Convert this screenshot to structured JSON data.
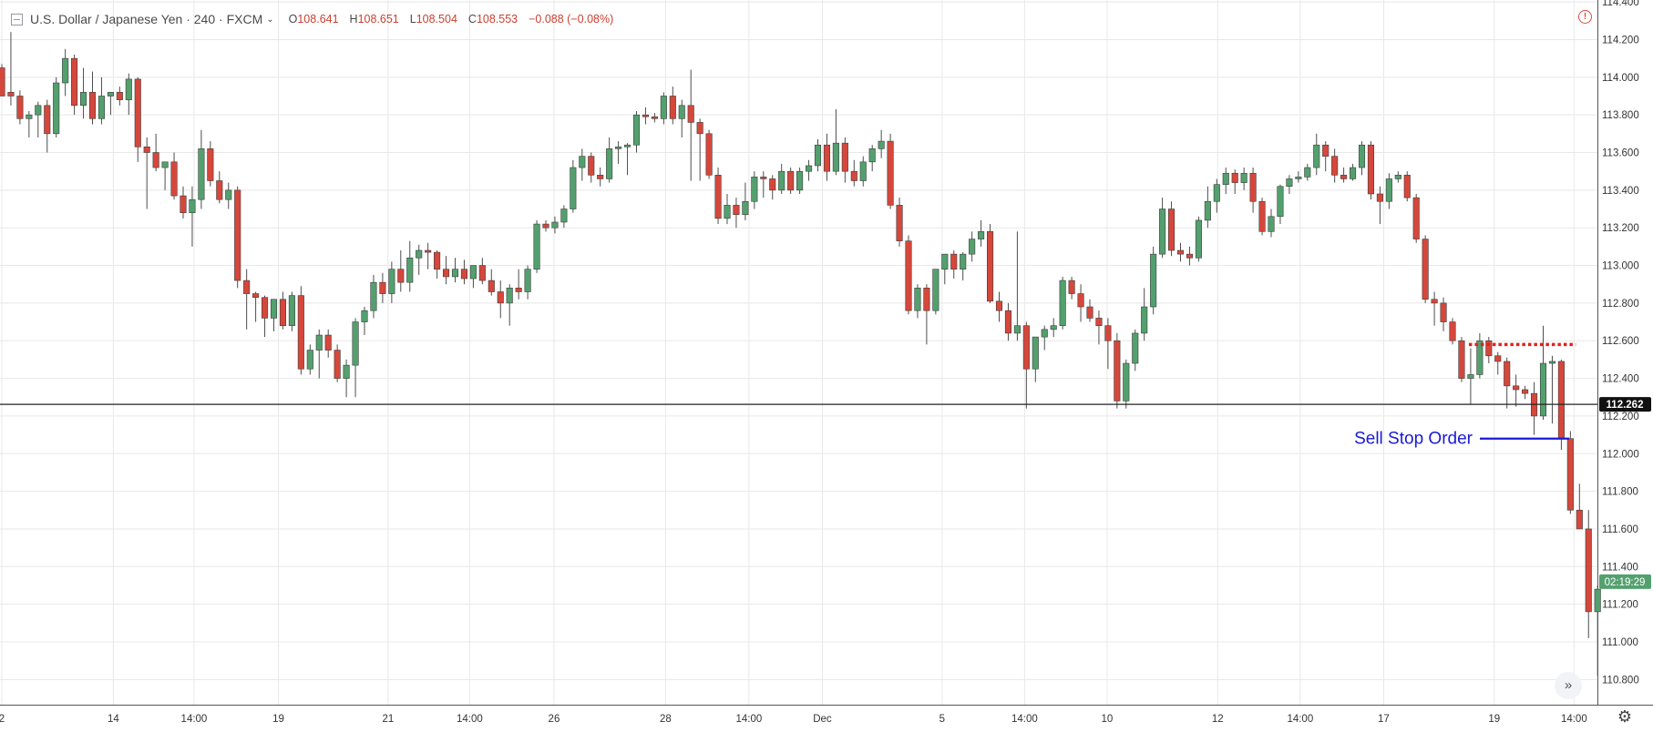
{
  "header": {
    "symbol": "U.S. Dollar / Japanese Yen · 240 · FXCM",
    "open": "108.641",
    "high": "108.651",
    "low": "108.504",
    "close": "108.553",
    "change": "−0.088 (−0.08%)"
  },
  "icons": {
    "collapse": "collapse-icon",
    "dropdown": "chevron-down-icon",
    "alert": "alert-icon",
    "scroll": "scroll-to-realtime-icon",
    "settings": "gear-icon"
  },
  "colors": {
    "bull": "#53a06e",
    "bear": "#d6473b",
    "wick": "#4d4d4d",
    "grid": "#e8e8e8",
    "hline": "#222222",
    "annotation": "#1a1ad4",
    "resistance": "#e81e1e",
    "price_badge": "#111111",
    "timer_badge": "#53a06e"
  },
  "chart_data": {
    "type": "candlestick",
    "title": "U.S. Dollar / Japanese Yen · 240 · FXCM",
    "ylim": [
      110.7,
      114.42
    ],
    "y_ticks": [
      "114.400",
      "114.200",
      "114.000",
      "113.800",
      "113.600",
      "113.400",
      "113.200",
      "113.000",
      "112.800",
      "112.600",
      "112.400",
      "112.200",
      "112.000",
      "111.800",
      "111.600",
      "111.400",
      "111.200",
      "111.000",
      "110.800"
    ],
    "x_ticks": [
      {
        "label": "2",
        "index": 0
      },
      {
        "label": "14",
        "index": 12.3
      },
      {
        "label": "14:00",
        "index": 21.2
      },
      {
        "label": "19",
        "index": 30.5
      },
      {
        "label": "21",
        "index": 42.6
      },
      {
        "label": "14:00",
        "index": 51.6
      },
      {
        "label": "26",
        "index": 60.9
      },
      {
        "label": "28",
        "index": 73.2
      },
      {
        "label": "14:00",
        "index": 82.4
      },
      {
        "label": "Dec",
        "index": 90.5
      },
      {
        "label": "5",
        "index": 103.7
      },
      {
        "label": "14:00",
        "index": 112.8
      },
      {
        "label": "10",
        "index": 121.9
      },
      {
        "label": "12",
        "index": 134.1
      },
      {
        "label": "14:00",
        "index": 143.2
      },
      {
        "label": "17",
        "index": 152.4
      },
      {
        "label": "19",
        "index": 164.6
      },
      {
        "label": "14:00",
        "index": 173.4
      }
    ],
    "candles": [
      [
        114.05,
        114.07,
        113.9,
        113.9
      ],
      [
        113.92,
        114.24,
        113.85,
        113.9
      ],
      [
        113.9,
        113.93,
        113.75,
        113.78
      ],
      [
        113.78,
        113.82,
        113.68,
        113.8
      ],
      [
        113.8,
        113.87,
        113.68,
        113.85
      ],
      [
        113.85,
        113.88,
        113.6,
        113.7
      ],
      [
        113.7,
        114.0,
        113.68,
        113.97
      ],
      [
        113.97,
        114.15,
        113.9,
        114.1
      ],
      [
        114.1,
        114.12,
        113.8,
        113.85
      ],
      [
        113.85,
        114.05,
        113.78,
        113.92
      ],
      [
        113.92,
        114.03,
        113.75,
        113.78
      ],
      [
        113.78,
        114.0,
        113.75,
        113.9
      ],
      [
        113.9,
        113.92,
        113.8,
        113.92
      ],
      [
        113.92,
        113.95,
        113.85,
        113.88
      ],
      [
        113.88,
        114.02,
        113.8,
        113.99
      ],
      [
        113.99,
        114.0,
        113.55,
        113.63
      ],
      [
        113.63,
        113.68,
        113.3,
        113.6
      ],
      [
        113.6,
        113.7,
        113.5,
        113.52
      ],
      [
        113.52,
        113.55,
        113.4,
        113.55
      ],
      [
        113.55,
        113.6,
        113.35,
        113.37
      ],
      [
        113.37,
        113.42,
        113.25,
        113.28
      ],
      [
        113.28,
        113.42,
        113.1,
        113.35
      ],
      [
        113.35,
        113.72,
        113.3,
        113.62
      ],
      [
        113.62,
        113.66,
        113.42,
        113.45
      ],
      [
        113.45,
        113.5,
        113.33,
        113.35
      ],
      [
        113.35,
        113.44,
        113.3,
        113.4
      ],
      [
        113.4,
        113.42,
        112.88,
        112.92
      ],
      [
        112.92,
        112.98,
        112.66,
        112.85
      ],
      [
        112.85,
        112.86,
        112.7,
        112.83
      ],
      [
        112.83,
        112.84,
        112.62,
        112.72
      ],
      [
        112.72,
        112.82,
        112.65,
        112.82
      ],
      [
        112.82,
        112.86,
        112.66,
        112.68
      ],
      [
        112.68,
        112.86,
        112.65,
        112.84
      ],
      [
        112.84,
        112.89,
        112.42,
        112.45
      ],
      [
        112.45,
        112.58,
        112.42,
        112.55
      ],
      [
        112.55,
        112.66,
        112.4,
        112.63
      ],
      [
        112.63,
        112.66,
        112.51,
        112.55
      ],
      [
        112.55,
        112.58,
        112.38,
        112.4
      ],
      [
        112.4,
        112.5,
        112.3,
        112.47
      ],
      [
        112.47,
        112.72,
        112.3,
        112.7
      ],
      [
        112.7,
        112.78,
        112.63,
        112.76
      ],
      [
        112.76,
        112.95,
        112.72,
        112.91
      ],
      [
        112.91,
        112.96,
        112.8,
        112.85
      ],
      [
        112.85,
        113.02,
        112.8,
        112.98
      ],
      [
        112.98,
        113.08,
        112.86,
        112.91
      ],
      [
        112.91,
        113.13,
        112.86,
        113.04
      ],
      [
        113.04,
        113.11,
        112.95,
        113.08
      ],
      [
        113.08,
        113.12,
        112.98,
        113.07
      ],
      [
        113.07,
        113.08,
        112.93,
        112.98
      ],
      [
        112.98,
        113.05,
        112.9,
        112.94
      ],
      [
        112.94,
        113.04,
        112.91,
        112.98
      ],
      [
        112.98,
        113.03,
        112.9,
        112.93
      ],
      [
        112.93,
        113.0,
        112.88,
        113.0
      ],
      [
        113.0,
        113.04,
        112.9,
        112.92
      ],
      [
        112.92,
        112.98,
        112.84,
        112.86
      ],
      [
        112.86,
        112.92,
        112.72,
        112.8
      ],
      [
        112.8,
        112.9,
        112.68,
        112.88
      ],
      [
        112.88,
        112.98,
        112.82,
        112.86
      ],
      [
        112.86,
        113.0,
        112.82,
        112.98
      ],
      [
        112.98,
        113.24,
        112.96,
        113.22
      ],
      [
        113.22,
        113.24,
        113.18,
        113.2
      ],
      [
        113.2,
        113.26,
        113.17,
        113.23
      ],
      [
        113.23,
        113.32,
        113.2,
        113.3
      ],
      [
        113.3,
        113.56,
        113.28,
        113.52
      ],
      [
        113.52,
        113.62,
        113.45,
        113.58
      ],
      [
        113.58,
        113.6,
        113.44,
        113.48
      ],
      [
        113.48,
        113.52,
        113.42,
        113.46
      ],
      [
        113.46,
        113.68,
        113.44,
        113.62
      ],
      [
        113.62,
        113.66,
        113.54,
        113.63
      ],
      [
        113.63,
        113.65,
        113.48,
        113.64
      ],
      [
        113.64,
        113.82,
        113.6,
        113.8
      ],
      [
        113.8,
        113.84,
        113.75,
        113.79
      ],
      [
        113.79,
        113.81,
        113.76,
        113.78
      ],
      [
        113.78,
        113.92,
        113.75,
        113.9
      ],
      [
        113.9,
        113.95,
        113.75,
        113.78
      ],
      [
        113.78,
        113.88,
        113.68,
        113.85
      ],
      [
        113.85,
        114.04,
        113.45,
        113.76
      ],
      [
        113.76,
        113.78,
        113.45,
        113.7
      ],
      [
        113.7,
        113.72,
        113.46,
        113.48
      ],
      [
        113.48,
        113.52,
        113.22,
        113.25
      ],
      [
        113.25,
        113.38,
        113.22,
        113.32
      ],
      [
        113.32,
        113.36,
        113.2,
        113.27
      ],
      [
        113.27,
        113.44,
        113.24,
        113.34
      ],
      [
        113.34,
        113.5,
        113.3,
        113.47
      ],
      [
        113.47,
        113.5,
        113.36,
        113.46
      ],
      [
        113.46,
        113.48,
        113.35,
        113.4
      ],
      [
        113.4,
        113.54,
        113.38,
        113.5
      ],
      [
        113.5,
        113.52,
        113.38,
        113.4
      ],
      [
        113.4,
        113.52,
        113.38,
        113.5
      ],
      [
        113.5,
        113.56,
        113.45,
        113.53
      ],
      [
        113.53,
        113.67,
        113.5,
        113.64
      ],
      [
        113.64,
        113.7,
        113.45,
        113.5
      ],
      [
        113.5,
        113.83,
        113.48,
        113.65
      ],
      [
        113.65,
        113.68,
        113.44,
        113.5
      ],
      [
        113.5,
        113.56,
        113.42,
        113.45
      ],
      [
        113.45,
        113.58,
        113.42,
        113.55
      ],
      [
        113.55,
        113.64,
        113.5,
        113.62
      ],
      [
        113.62,
        113.72,
        113.57,
        113.66
      ],
      [
        113.66,
        113.7,
        113.3,
        113.32
      ],
      [
        113.32,
        113.36,
        113.1,
        113.13
      ],
      [
        113.13,
        113.16,
        112.74,
        112.76
      ],
      [
        112.76,
        112.9,
        112.72,
        112.88
      ],
      [
        112.88,
        112.9,
        112.58,
        112.76
      ],
      [
        112.76,
        112.96,
        112.74,
        112.98
      ],
      [
        112.98,
        113.06,
        112.9,
        113.06
      ],
      [
        113.06,
        113.08,
        112.93,
        112.98
      ],
      [
        112.98,
        113.07,
        112.92,
        113.06
      ],
      [
        113.06,
        113.18,
        113.02,
        113.14
      ],
      [
        113.14,
        113.24,
        113.1,
        113.18
      ],
      [
        113.18,
        113.22,
        112.8,
        112.81
      ],
      [
        112.81,
        112.86,
        112.7,
        112.76
      ],
      [
        112.76,
        112.8,
        112.6,
        112.64
      ],
      [
        112.64,
        113.18,
        112.6,
        112.68
      ],
      [
        112.68,
        112.7,
        112.24,
        112.45
      ],
      [
        112.45,
        112.6,
        112.38,
        112.62
      ],
      [
        112.62,
        112.68,
        112.55,
        112.66
      ],
      [
        112.66,
        112.72,
        112.62,
        112.68
      ],
      [
        112.68,
        112.94,
        112.66,
        112.92
      ],
      [
        112.92,
        112.94,
        112.82,
        112.85
      ],
      [
        112.85,
        112.9,
        112.7,
        112.78
      ],
      [
        112.78,
        112.82,
        112.7,
        112.72
      ],
      [
        112.72,
        112.76,
        112.58,
        112.68
      ],
      [
        112.68,
        112.72,
        112.45,
        112.6
      ],
      [
        112.6,
        112.64,
        112.24,
        112.28
      ],
      [
        112.28,
        112.5,
        112.24,
        112.48
      ],
      [
        112.48,
        112.66,
        112.44,
        112.64
      ],
      [
        112.64,
        112.88,
        112.6,
        112.78
      ],
      [
        112.78,
        113.1,
        112.74,
        113.06
      ],
      [
        113.06,
        113.36,
        113.04,
        113.3
      ],
      [
        113.3,
        113.34,
        113.05,
        113.08
      ],
      [
        113.08,
        113.12,
        113.02,
        113.06
      ],
      [
        113.06,
        113.1,
        113.0,
        113.04
      ],
      [
        113.04,
        113.26,
        113.02,
        113.24
      ],
      [
        113.24,
        113.42,
        113.2,
        113.34
      ],
      [
        113.34,
        113.46,
        113.28,
        113.43
      ],
      [
        113.43,
        113.52,
        113.38,
        113.49
      ],
      [
        113.49,
        113.51,
        113.38,
        113.44
      ],
      [
        113.44,
        113.52,
        113.4,
        113.49
      ],
      [
        113.49,
        113.52,
        113.28,
        113.34
      ],
      [
        113.34,
        113.36,
        113.16,
        113.18
      ],
      [
        113.18,
        113.3,
        113.15,
        113.26
      ],
      [
        113.26,
        113.43,
        113.22,
        113.42
      ],
      [
        113.42,
        113.48,
        113.38,
        113.46
      ],
      [
        113.46,
        113.5,
        113.44,
        113.47
      ],
      [
        113.47,
        113.54,
        113.45,
        113.52
      ],
      [
        113.52,
        113.7,
        113.48,
        113.64
      ],
      [
        113.64,
        113.66,
        113.5,
        113.58
      ],
      [
        113.58,
        113.62,
        113.44,
        113.48
      ],
      [
        113.48,
        113.52,
        113.44,
        113.46
      ],
      [
        113.46,
        113.54,
        113.45,
        113.52
      ],
      [
        113.52,
        113.66,
        113.48,
        113.64
      ],
      [
        113.64,
        113.66,
        113.35,
        113.38
      ],
      [
        113.38,
        113.42,
        113.22,
        113.34
      ],
      [
        113.34,
        113.49,
        113.3,
        113.46
      ],
      [
        113.46,
        113.5,
        113.44,
        113.48
      ],
      [
        113.48,
        113.5,
        113.34,
        113.36
      ],
      [
        113.36,
        113.38,
        113.12,
        113.14
      ],
      [
        113.14,
        113.16,
        112.8,
        112.82
      ],
      [
        112.82,
        112.86,
        112.68,
        112.8
      ],
      [
        112.8,
        112.83,
        112.65,
        112.7
      ],
      [
        112.7,
        112.72,
        112.58,
        112.6
      ],
      [
        112.6,
        112.62,
        112.38,
        112.4
      ],
      [
        112.4,
        112.56,
        112.26,
        112.42
      ],
      [
        112.42,
        112.64,
        112.4,
        112.6
      ],
      [
        112.6,
        112.62,
        112.48,
        112.52
      ],
      [
        112.52,
        112.54,
        112.42,
        112.49
      ],
      [
        112.49,
        112.51,
        112.24,
        112.36
      ],
      [
        112.36,
        112.42,
        112.25,
        112.34
      ],
      [
        112.34,
        112.36,
        112.29,
        112.32
      ],
      [
        112.32,
        112.38,
        112.1,
        112.2
      ],
      [
        112.2,
        112.68,
        112.18,
        112.48
      ],
      [
        112.48,
        112.52,
        112.16,
        112.49
      ],
      [
        112.49,
        112.5,
        112.02,
        112.08
      ],
      [
        112.08,
        112.12,
        111.68,
        111.7
      ],
      [
        111.7,
        111.84,
        111.6,
        111.6
      ],
      [
        111.6,
        111.7,
        111.02,
        111.16
      ],
      [
        111.16,
        111.3,
        110.82,
        111.28
      ]
    ],
    "last_price": "112.262",
    "countdown": "02:19:29",
    "annotations": {
      "sell_stop_label": "Sell Stop Order",
      "sell_stop_level": 112.08,
      "horizontal_line_level": 112.262,
      "resistance_level": 112.58
    }
  }
}
